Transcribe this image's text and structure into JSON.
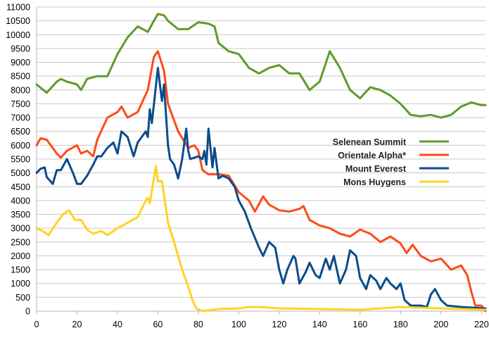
{
  "chart_data": {
    "type": "line",
    "title": "",
    "xlabel": "",
    "ylabel": "",
    "xlim": [
      0,
      222
    ],
    "ylim": [
      0,
      11000
    ],
    "x_ticks": [
      0,
      20,
      40,
      60,
      80,
      100,
      120,
      140,
      160,
      180,
      200,
      220
    ],
    "y_ticks": [
      0,
      500,
      1000,
      1500,
      2000,
      2500,
      3000,
      3500,
      4000,
      4500,
      5000,
      5500,
      6000,
      6500,
      7000,
      7500,
      8000,
      8500,
      9000,
      9500,
      10000,
      10500,
      11000
    ],
    "grid": "horizontal",
    "legend_position": "center-right",
    "series": [
      {
        "name": "Selenean Summit",
        "color": "#5e9b2a",
        "points": [
          [
            0,
            8200
          ],
          [
            5,
            7900
          ],
          [
            10,
            8300
          ],
          [
            12,
            8400
          ],
          [
            15,
            8300
          ],
          [
            20,
            8200
          ],
          [
            22,
            8000
          ],
          [
            25,
            8400
          ],
          [
            30,
            8500
          ],
          [
            35,
            8500
          ],
          [
            40,
            9300
          ],
          [
            45,
            9900
          ],
          [
            50,
            10300
          ],
          [
            55,
            10100
          ],
          [
            58,
            10500
          ],
          [
            60,
            10750
          ],
          [
            63,
            10700
          ],
          [
            65,
            10500
          ],
          [
            70,
            10200
          ],
          [
            75,
            10200
          ],
          [
            80,
            10450
          ],
          [
            85,
            10400
          ],
          [
            88,
            10300
          ],
          [
            90,
            9700
          ],
          [
            95,
            9400
          ],
          [
            100,
            9300
          ],
          [
            105,
            8800
          ],
          [
            110,
            8600
          ],
          [
            115,
            8800
          ],
          [
            120,
            8900
          ],
          [
            125,
            8600
          ],
          [
            130,
            8600
          ],
          [
            135,
            8000
          ],
          [
            140,
            8300
          ],
          [
            145,
            9400
          ],
          [
            150,
            8800
          ],
          [
            155,
            8000
          ],
          [
            160,
            7700
          ],
          [
            165,
            8100
          ],
          [
            170,
            8000
          ],
          [
            175,
            7800
          ],
          [
            180,
            7500
          ],
          [
            185,
            7100
          ],
          [
            190,
            7050
          ],
          [
            195,
            7100
          ],
          [
            200,
            7000
          ],
          [
            205,
            7100
          ],
          [
            210,
            7400
          ],
          [
            215,
            7550
          ],
          [
            220,
            7450
          ],
          [
            222,
            7450
          ]
        ]
      },
      {
        "name": "Orientale Alpha*",
        "color": "#ff4a1a",
        "points": [
          [
            0,
            6000
          ],
          [
            2,
            6250
          ],
          [
            5,
            6200
          ],
          [
            10,
            5700
          ],
          [
            12,
            5550
          ],
          [
            15,
            5800
          ],
          [
            20,
            6000
          ],
          [
            22,
            5700
          ],
          [
            25,
            5800
          ],
          [
            28,
            5600
          ],
          [
            30,
            6200
          ],
          [
            35,
            7000
          ],
          [
            40,
            7200
          ],
          [
            42,
            7400
          ],
          [
            45,
            7000
          ],
          [
            50,
            7200
          ],
          [
            55,
            8000
          ],
          [
            58,
            9200
          ],
          [
            60,
            9400
          ],
          [
            63,
            8700
          ],
          [
            65,
            7500
          ],
          [
            70,
            6500
          ],
          [
            75,
            5900
          ],
          [
            78,
            6000
          ],
          [
            80,
            5800
          ],
          [
            82,
            5100
          ],
          [
            85,
            4950
          ],
          [
            90,
            4950
          ],
          [
            95,
            4900
          ],
          [
            100,
            4300
          ],
          [
            105,
            4000
          ],
          [
            108,
            3600
          ],
          [
            112,
            4150
          ],
          [
            115,
            3850
          ],
          [
            120,
            3650
          ],
          [
            125,
            3600
          ],
          [
            130,
            3700
          ],
          [
            132,
            3800
          ],
          [
            135,
            3300
          ],
          [
            140,
            3100
          ],
          [
            145,
            3000
          ],
          [
            150,
            2800
          ],
          [
            155,
            2700
          ],
          [
            160,
            2950
          ],
          [
            165,
            2800
          ],
          [
            170,
            2500
          ],
          [
            175,
            2700
          ],
          [
            180,
            2450
          ],
          [
            183,
            2100
          ],
          [
            186,
            2400
          ],
          [
            190,
            2000
          ],
          [
            195,
            1800
          ],
          [
            200,
            1900
          ],
          [
            205,
            1500
          ],
          [
            210,
            1650
          ],
          [
            213,
            1300
          ],
          [
            215,
            700
          ],
          [
            217,
            200
          ],
          [
            220,
            200
          ],
          [
            222,
            0
          ]
        ]
      },
      {
        "name": "Mount Everest",
        "color": "#0b4b8c",
        "points": [
          [
            0,
            5000
          ],
          [
            2,
            5150
          ],
          [
            4,
            5200
          ],
          [
            5,
            4850
          ],
          [
            8,
            4600
          ],
          [
            10,
            5100
          ],
          [
            12,
            5100
          ],
          [
            15,
            5500
          ],
          [
            18,
            5000
          ],
          [
            20,
            4600
          ],
          [
            22,
            4600
          ],
          [
            25,
            4900
          ],
          [
            28,
            5300
          ],
          [
            30,
            5600
          ],
          [
            32,
            5600
          ],
          [
            35,
            5900
          ],
          [
            38,
            6100
          ],
          [
            40,
            5700
          ],
          [
            42,
            6500
          ],
          [
            45,
            6300
          ],
          [
            48,
            5600
          ],
          [
            50,
            6100
          ],
          [
            52,
            6300
          ],
          [
            54,
            6500
          ],
          [
            55,
            6300
          ],
          [
            56,
            7300
          ],
          [
            57,
            6800
          ],
          [
            60,
            8800
          ],
          [
            62,
            7600
          ],
          [
            63,
            8200
          ],
          [
            65,
            6000
          ],
          [
            66,
            5500
          ],
          [
            68,
            5300
          ],
          [
            70,
            4800
          ],
          [
            72,
            5500
          ],
          [
            74,
            6600
          ],
          [
            75,
            5800
          ],
          [
            76,
            5500
          ],
          [
            80,
            5600
          ],
          [
            82,
            5500
          ],
          [
            83,
            5800
          ],
          [
            84,
            5300
          ],
          [
            85,
            6600
          ],
          [
            87,
            5200
          ],
          [
            88,
            5900
          ],
          [
            90,
            4800
          ],
          [
            92,
            4900
          ],
          [
            95,
            4800
          ],
          [
            98,
            4500
          ],
          [
            100,
            4000
          ],
          [
            103,
            3600
          ],
          [
            106,
            3000
          ],
          [
            110,
            2300
          ],
          [
            112,
            2000
          ],
          [
            115,
            2500
          ],
          [
            118,
            2300
          ],
          [
            120,
            1500
          ],
          [
            122,
            1000
          ],
          [
            124,
            1500
          ],
          [
            127,
            2000
          ],
          [
            128,
            1900
          ],
          [
            130,
            1000
          ],
          [
            133,
            1400
          ],
          [
            135,
            1750
          ],
          [
            138,
            1300
          ],
          [
            140,
            1200
          ],
          [
            143,
            1900
          ],
          [
            145,
            1500
          ],
          [
            147,
            2000
          ],
          [
            150,
            1000
          ],
          [
            153,
            1500
          ],
          [
            155,
            2200
          ],
          [
            158,
            2000
          ],
          [
            160,
            1200
          ],
          [
            163,
            800
          ],
          [
            165,
            1300
          ],
          [
            168,
            1100
          ],
          [
            170,
            800
          ],
          [
            173,
            1200
          ],
          [
            175,
            1000
          ],
          [
            178,
            800
          ],
          [
            180,
            1000
          ],
          [
            182,
            400
          ],
          [
            185,
            200
          ],
          [
            190,
            200
          ],
          [
            193,
            150
          ],
          [
            195,
            600
          ],
          [
            197,
            800
          ],
          [
            200,
            400
          ],
          [
            203,
            200
          ],
          [
            210,
            150
          ],
          [
            222,
            100
          ]
        ]
      },
      {
        "name": "Mons Huygens",
        "color": "#ffd320",
        "points": [
          [
            0,
            3000
          ],
          [
            3,
            2900
          ],
          [
            6,
            2750
          ],
          [
            10,
            3200
          ],
          [
            13,
            3500
          ],
          [
            16,
            3650
          ],
          [
            19,
            3300
          ],
          [
            22,
            3300
          ],
          [
            25,
            2950
          ],
          [
            28,
            2800
          ],
          [
            32,
            2900
          ],
          [
            35,
            2750
          ],
          [
            40,
            3000
          ],
          [
            45,
            3200
          ],
          [
            50,
            3400
          ],
          [
            54,
            4000
          ],
          [
            55,
            4100
          ],
          [
            56,
            3900
          ],
          [
            58,
            4800
          ],
          [
            59,
            5250
          ],
          [
            60,
            4700
          ],
          [
            62,
            4700
          ],
          [
            65,
            3200
          ],
          [
            68,
            2500
          ],
          [
            72,
            1500
          ],
          [
            75,
            900
          ],
          [
            77,
            400
          ],
          [
            79,
            100
          ],
          [
            82,
            0
          ],
          [
            90,
            80
          ],
          [
            100,
            100
          ],
          [
            105,
            150
          ],
          [
            110,
            150
          ],
          [
            120,
            100
          ],
          [
            140,
            80
          ],
          [
            160,
            50
          ],
          [
            180,
            150
          ],
          [
            200,
            100
          ],
          [
            222,
            50
          ]
        ]
      }
    ]
  }
}
